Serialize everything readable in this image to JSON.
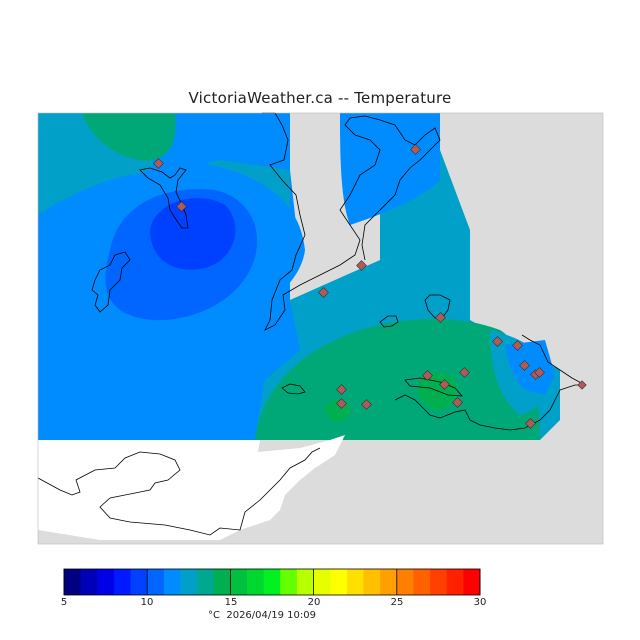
{
  "title": "VictoriaWeather.ca -- Temperature",
  "legend": {
    "ticks": [
      "5",
      "10",
      "15",
      "20",
      "25",
      "30"
    ],
    "unit": "°C",
    "timestamp": "2026/04/19 10:09",
    "colors": [
      "#000080",
      "#0000b8",
      "#0000e6",
      "#0019ff",
      "#0040ff",
      "#0066ff",
      "#008cff",
      "#00a0c8",
      "#00a890",
      "#00b050",
      "#00c040",
      "#00d830",
      "#00f020",
      "#66ff00",
      "#b8ff00",
      "#e6ff00",
      "#ffff00",
      "#ffe000",
      "#ffc000",
      "#ffa000",
      "#ff8000",
      "#ff6000",
      "#ff4000",
      "#ff2000",
      "#ff0000"
    ]
  },
  "map_colors": {
    "land": "#dcdcdc",
    "water": "#ffffff",
    "temp_11": "#0066ff",
    "temp_12": "#008cff",
    "temp_13": "#00a0c8",
    "temp_14": "#00a878",
    "temp_15": "#00b050",
    "station": "#b05a5a"
  }
}
